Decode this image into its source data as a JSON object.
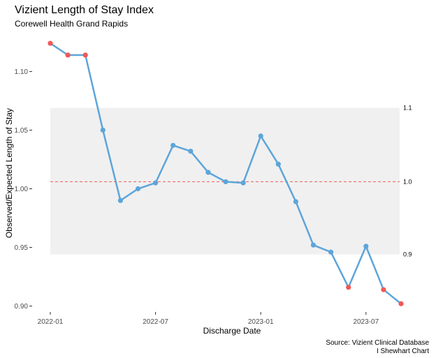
{
  "chart_data": {
    "type": "line",
    "title": "Vizient Length of Stay Index",
    "subtitle": "Corewell Health Grand Rapids",
    "xlabel": "Discharge Date",
    "ylabel": "Observed/Expected Length of Stay",
    "x_tick_labels": [
      "2022-01",
      "2022-07",
      "2023-01",
      "2023-07"
    ],
    "y_tick_labels": [
      "0.90",
      "0.95",
      "1.00",
      "1.05",
      "1.10"
    ],
    "y_ticks": [
      0.9,
      0.95,
      1.0,
      1.05,
      1.1
    ],
    "ylim": [
      0.895,
      1.13
    ],
    "x": [
      "2022-01",
      "2022-02",
      "2022-03",
      "2022-04",
      "2022-05",
      "2022-06",
      "2022-07",
      "2022-08",
      "2022-09",
      "2022-10",
      "2022-11",
      "2022-12",
      "2023-01",
      "2023-02",
      "2023-03",
      "2023-04",
      "2023-05",
      "2023-06",
      "2023-07",
      "2023-08",
      "2023-09"
    ],
    "values": [
      1.124,
      1.114,
      1.114,
      1.05,
      0.99,
      1.0,
      1.005,
      1.037,
      1.032,
      1.014,
      1.006,
      1.005,
      1.045,
      1.021,
      0.989,
      0.952,
      0.946,
      0.916,
      0.951,
      0.914,
      0.902
    ],
    "flagged": [
      true,
      true,
      true,
      false,
      false,
      false,
      false,
      false,
      false,
      false,
      false,
      false,
      false,
      false,
      false,
      false,
      false,
      true,
      false,
      true,
      true
    ],
    "center_line": 1.006,
    "upper_limit": 1.069,
    "lower_limit": 0.944,
    "limit_labels": [
      "1.1",
      "1.0",
      "0.9"
    ],
    "line_color": "#5DA5DA",
    "flag_color": "#F15854",
    "center_line_color": "#F15854",
    "band_color": "#F0F0F0",
    "grid": false
  },
  "caption": {
    "line1": "Source: Vizient Clinical Database",
    "line2": "I Shewhart Chart"
  }
}
